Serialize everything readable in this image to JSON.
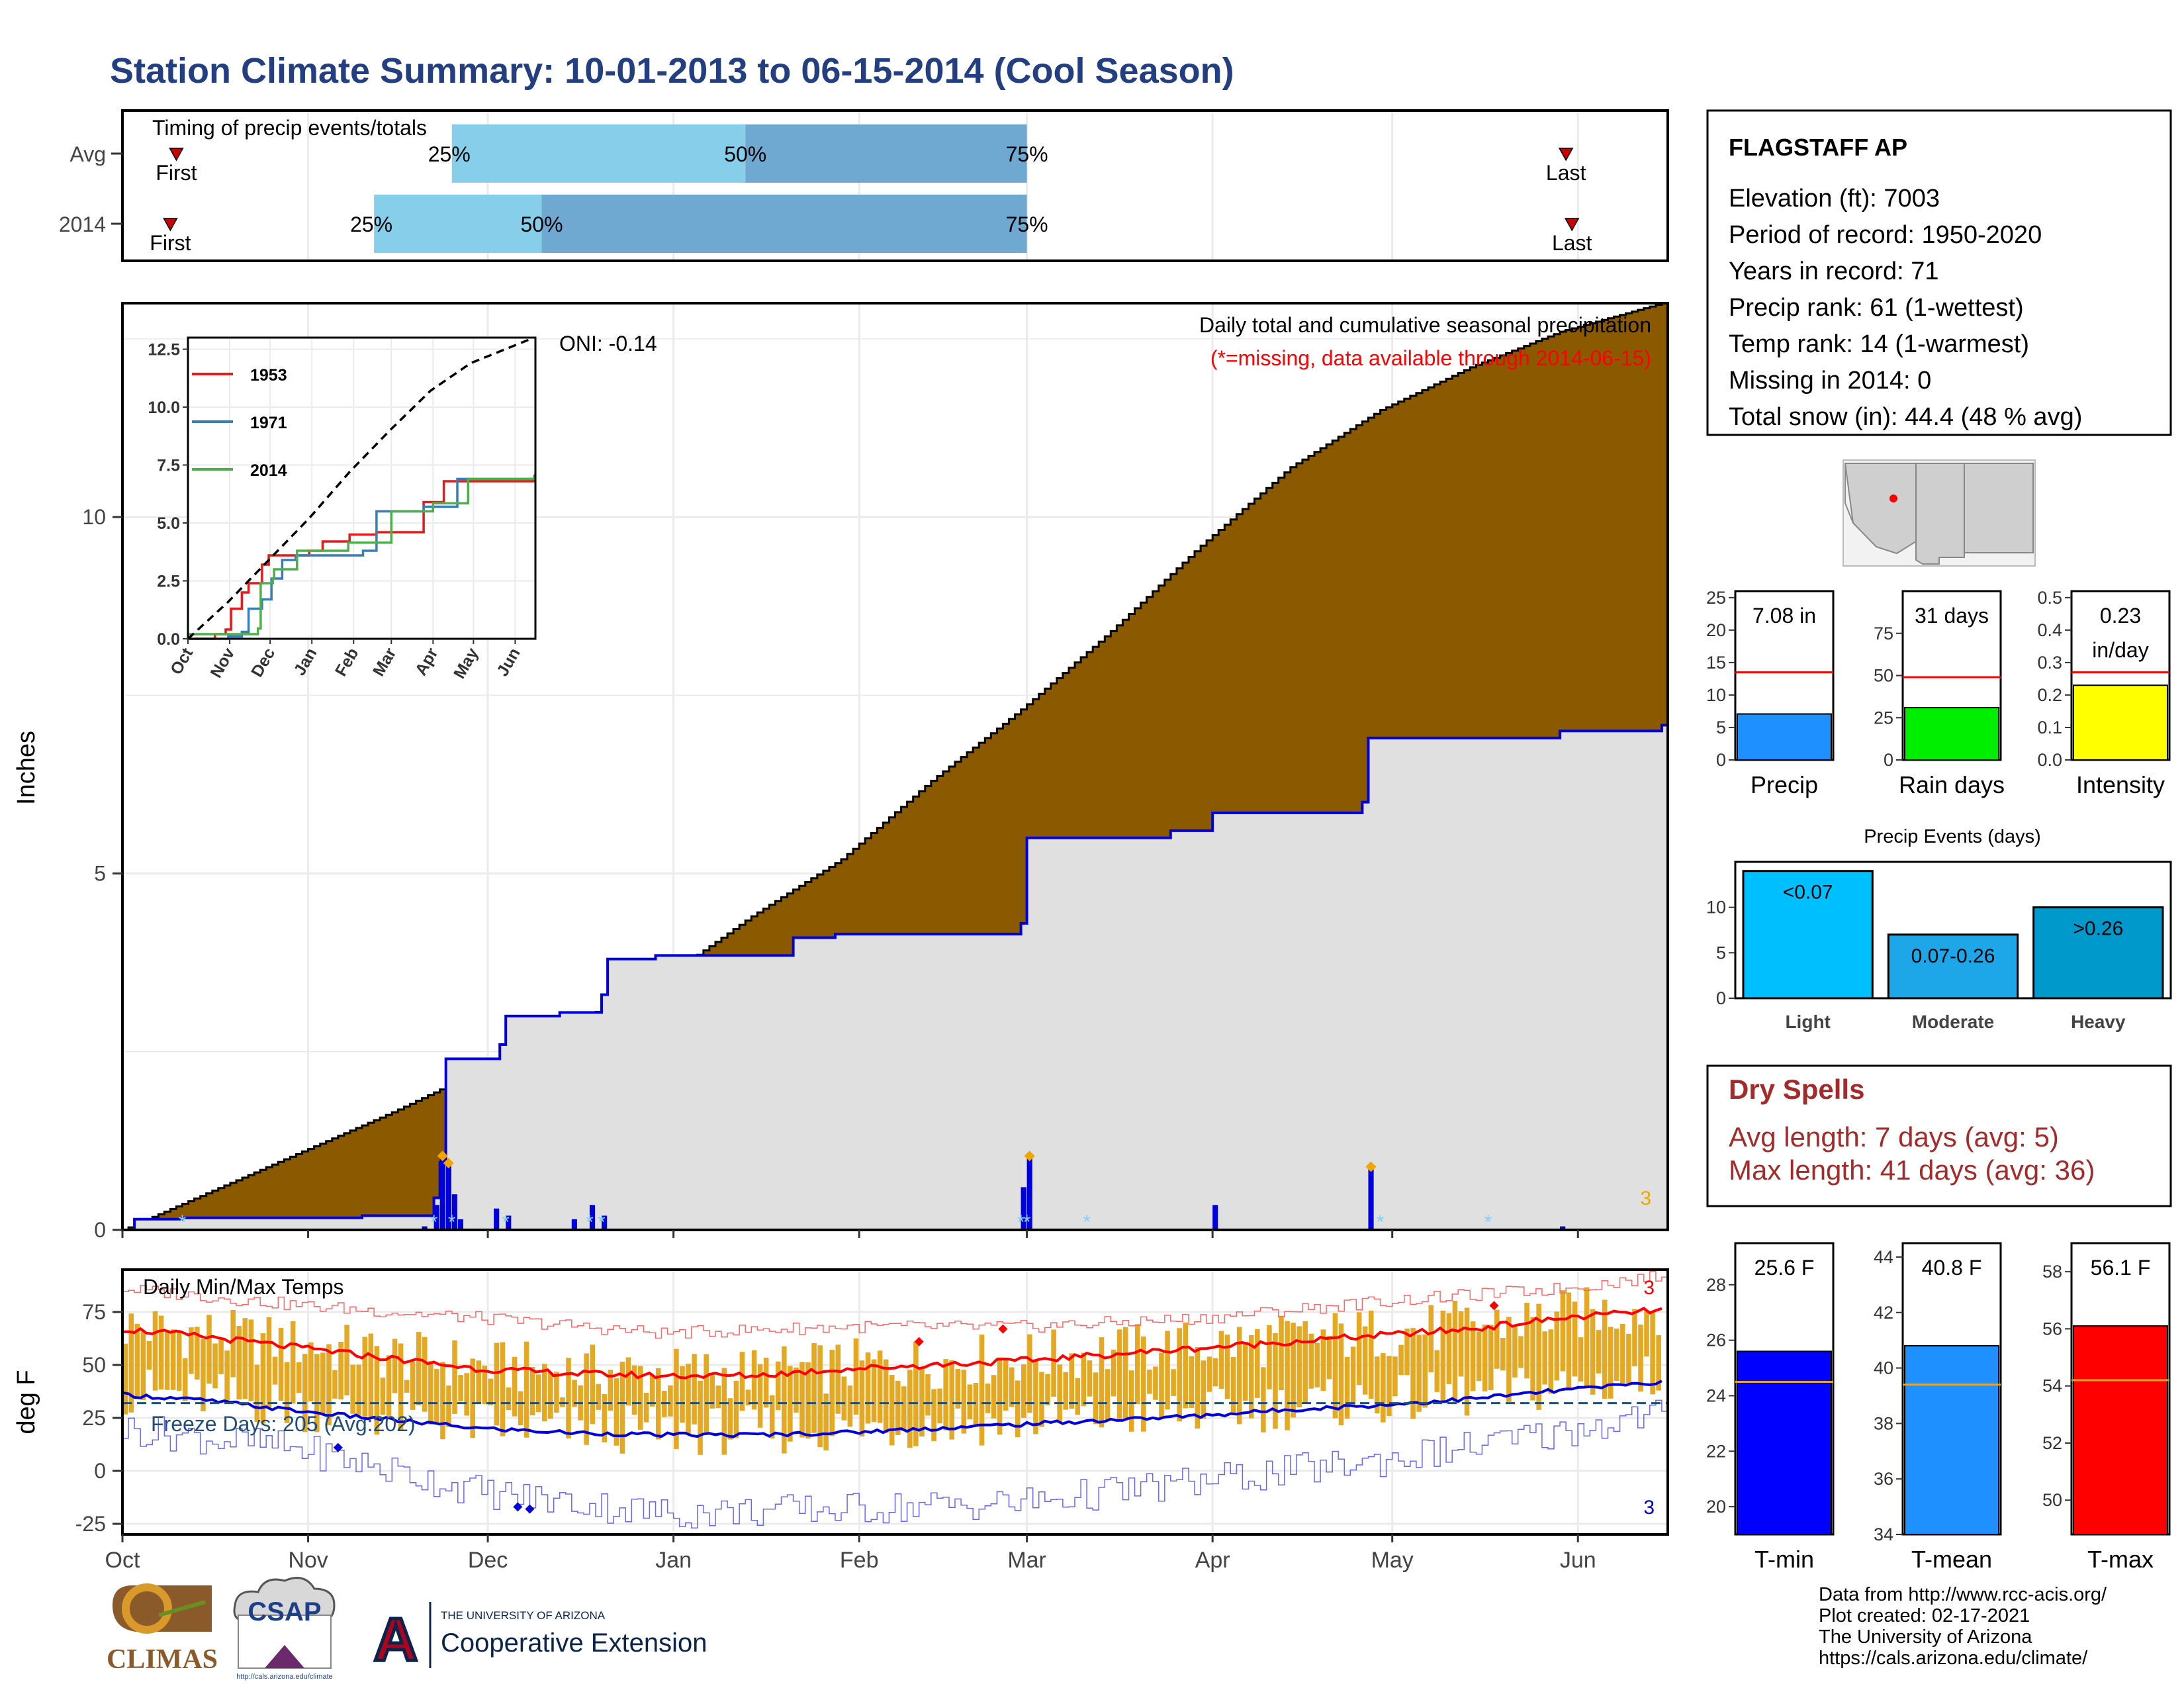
{
  "title": "Station Climate Summary: 10-01-2013 to 06-15-2014 (Cool Season)",
  "colors": {
    "title": "#233f82",
    "brown": "#8b5a00",
    "gray_fill": "#e0e0e0",
    "blue_line": "#0000dd",
    "light_blue": "#87ceeb",
    "steel_blue": "#6fa8d0",
    "orange": "#f0a500",
    "dry_red": "#a52a2a",
    "red": "#ff0000"
  },
  "timing": {
    "title": "Timing of precip events/totals",
    "row_labels": [
      "Avg",
      "2014"
    ],
    "first_label": "First",
    "last_label": "Last",
    "pct_labels": [
      "25%",
      "50%",
      "75%"
    ]
  },
  "chart_data": [
    {
      "id": "timing",
      "type": "bar",
      "title": "Timing of precip events/totals",
      "rows": [
        {
          "label": "Avg",
          "first": "10-10",
          "p25": "11-25",
          "p50": "01-13",
          "p75": "03-01",
          "last": "05-30"
        },
        {
          "label": "2014",
          "first": "10-09",
          "p25": "11-12",
          "p50": "12-10",
          "p75": "02-29",
          "last": "05-31"
        }
      ]
    },
    {
      "id": "precip_main",
      "type": "area",
      "title": "Daily total and cumulative seasonal precipitation",
      "subtitle": "(*=missing, data available through 2014-06-15)",
      "ylabel": "Inches",
      "ylim": [
        0,
        13
      ],
      "y_ticks": [
        0,
        5,
        10
      ],
      "x_ticks": [
        "Oct",
        "Nov",
        "Dec",
        "Jan",
        "Feb",
        "Mar",
        "Apr",
        "May",
        "Jun"
      ],
      "annotation": "ONI: -0.14",
      "count_label": "3",
      "series": [
        {
          "name": "average cumulative",
          "day": [
            0,
            15,
            30,
            45,
            60,
            75,
            90,
            105,
            120,
            135,
            150,
            165,
            180,
            195,
            210,
            225,
            240,
            257
          ],
          "values": [
            0,
            0.55,
            1.1,
            1.65,
            2.25,
            2.9,
            3.5,
            4.4,
            5.2,
            6.3,
            7.3,
            8.4,
            9.6,
            10.7,
            11.5,
            12.1,
            12.6,
            13.0
          ]
        },
        {
          "name": "2014 cumulative",
          "day": [
            0,
            2,
            10,
            40,
            52,
            53,
            54,
            63,
            64,
            73,
            80,
            81,
            89,
            112,
            119,
            150,
            151,
            175,
            182,
            207,
            208,
            240,
            257
          ],
          "values": [
            0,
            0.15,
            0.17,
            0.2,
            0.45,
            0.95,
            2.4,
            2.6,
            3.0,
            3.05,
            3.3,
            3.8,
            3.85,
            4.1,
            4.15,
            4.3,
            5.5,
            5.6,
            5.85,
            6.0,
            6.9,
            7.0,
            7.08
          ]
        },
        {
          "name": "daily precip",
          "day": [
            50,
            52,
            53,
            54,
            55,
            56,
            62,
            64,
            75,
            78,
            80,
            150,
            151,
            182,
            208,
            240
          ],
          "values": [
            0.05,
            0.35,
            1.0,
            0.9,
            0.5,
            0.15,
            0.3,
            0.2,
            0.15,
            0.35,
            0.2,
            0.6,
            1.0,
            0.35,
            0.85,
            0.05
          ]
        }
      ]
    },
    {
      "id": "inset",
      "type": "line",
      "x_ticks": [
        "Oct",
        "Nov",
        "Dec",
        "Jan",
        "Feb",
        "Mar",
        "Apr",
        "May",
        "Jun"
      ],
      "y_ticks": [
        "0.0",
        "2.5",
        "5.0",
        "7.5",
        "10.0",
        "12.5"
      ],
      "ylim": [
        0,
        13
      ],
      "series": [
        {
          "name": "1953",
          "color": "#e41a1c",
          "day": [
            0,
            20,
            28,
            32,
            40,
            45,
            55,
            60,
            90,
            100,
            110,
            120,
            140,
            160,
            175,
            190,
            257
          ],
          "values": [
            0,
            0.2,
            0.4,
            1.3,
            2.0,
            2.4,
            3.2,
            3.6,
            3.8,
            4.2,
            4.2,
            4.5,
            4.6,
            4.6,
            5.9,
            6.8,
            7.0
          ]
        },
        {
          "name": "1971",
          "color": "#377eb8",
          "day": [
            0,
            30,
            40,
            45,
            55,
            62,
            70,
            80,
            110,
            130,
            140,
            175,
            200,
            257
          ],
          "values": [
            0,
            0.1,
            0.3,
            1.3,
            1.7,
            2.6,
            3.4,
            3.6,
            3.6,
            3.8,
            5.5,
            5.7,
            6.9,
            7.0
          ]
        },
        {
          "name": "2014",
          "color": "#4daf4a",
          "day": [
            0,
            40,
            52,
            54,
            63,
            64,
            81,
            119,
            151,
            182,
            208,
            257
          ],
          "values": [
            0.2,
            0.2,
            0.45,
            2.4,
            2.6,
            3.0,
            3.8,
            4.15,
            5.5,
            5.85,
            6.9,
            7.08
          ]
        },
        {
          "name": "record high",
          "color": "#000000",
          "day": [
            0,
            30,
            60,
            90,
            120,
            150,
            180,
            210,
            240,
            257
          ],
          "values": [
            0,
            1.6,
            3.4,
            5.2,
            7.2,
            9.0,
            10.7,
            11.9,
            12.6,
            13.0
          ]
        }
      ]
    },
    {
      "id": "bar_precip",
      "type": "bar",
      "categories": [
        "Precip"
      ],
      "values": [
        7.08
      ],
      "value_label": "7.08 in",
      "avg": 13.5,
      "ylim": [
        0,
        26
      ],
      "y_ticks": [
        0,
        5,
        10,
        15,
        20,
        25
      ]
    },
    {
      "id": "bar_raindays",
      "type": "bar",
      "categories": [
        "Rain days"
      ],
      "values": [
        31
      ],
      "value_label": "31 days",
      "avg": 49,
      "ylim": [
        0,
        100
      ],
      "y_ticks": [
        0,
        25,
        50,
        75
      ]
    },
    {
      "id": "bar_intensity",
      "type": "bar",
      "categories": [
        "Intensity"
      ],
      "values": [
        0.23
      ],
      "value_label": [
        "0.23",
        "in/day"
      ],
      "avg": 0.27,
      "ylim": [
        0,
        0.52
      ],
      "y_ticks": [
        "0.0",
        "0.1",
        "0.2",
        "0.3",
        "0.4",
        "0.5"
      ]
    },
    {
      "id": "precip_events",
      "type": "bar",
      "title": "Precip Events (days)",
      "categories": [
        "Light",
        "Moderate",
        "Heavy"
      ],
      "values": [
        14,
        7,
        10
      ],
      "bar_labels": [
        "<0.07",
        "0.07-0.26",
        ">0.26"
      ],
      "ylim": [
        0,
        15
      ],
      "y_ticks": [
        0,
        5,
        10
      ]
    },
    {
      "id": "temps",
      "type": "line",
      "title": "Daily Min/Max Temps",
      "ylabel": "deg F",
      "ylim": [
        -30,
        95
      ],
      "y_ticks": [
        -25,
        0,
        25,
        50,
        75
      ],
      "x_ticks": [
        "Oct",
        "Nov",
        "Dec",
        "Jan",
        "Feb",
        "Mar",
        "Apr",
        "May",
        "Jun"
      ],
      "annotation": "Freeze Days: 205 (Avg:202)",
      "freeze_line": 32,
      "count_top": "3",
      "count_bottom": "3",
      "series": [
        {
          "name": "avg max",
          "day": [
            0,
            15,
            30,
            45,
            60,
            75,
            90,
            105,
            120,
            135,
            150,
            165,
            180,
            195,
            210,
            225,
            240,
            257
          ],
          "values": [
            67,
            63,
            58,
            53,
            48,
            46,
            45,
            45,
            48,
            50,
            52,
            55,
            58,
            61,
            64,
            67,
            72,
            76
          ]
        },
        {
          "name": "avg min",
          "day": [
            0,
            15,
            30,
            45,
            60,
            75,
            90,
            105,
            120,
            135,
            150,
            165,
            180,
            195,
            210,
            225,
            240,
            257
          ],
          "values": [
            36,
            33,
            28,
            24,
            20,
            18,
            17,
            17,
            18,
            20,
            22,
            24,
            26,
            29,
            31,
            34,
            38,
            42
          ]
        },
        {
          "name": "record max",
          "day": [
            0,
            30,
            60,
            90,
            120,
            150,
            180,
            210,
            240,
            257
          ],
          "values": [
            86,
            78,
            72,
            65,
            68,
            68,
            72,
            80,
            86,
            92
          ]
        },
        {
          "name": "record min",
          "day": [
            0,
            30,
            60,
            90,
            120,
            150,
            180,
            210,
            240,
            257
          ],
          "values": [
            20,
            10,
            -10,
            -20,
            -18,
            -15,
            -5,
            5,
            18,
            28
          ]
        }
      ]
    },
    {
      "id": "bar_tmin",
      "type": "bar",
      "categories": [
        "T-min"
      ],
      "values": [
        25.6
      ],
      "value_label": "25.6 F",
      "avg": 24.5,
      "ylim": [
        19,
        29.5
      ],
      "y_ticks": [
        20,
        22,
        24,
        26,
        28
      ]
    },
    {
      "id": "bar_tmean",
      "type": "bar",
      "categories": [
        "T-mean"
      ],
      "values": [
        40.8
      ],
      "value_label": "40.8 F",
      "avg": 39.4,
      "ylim": [
        34,
        44.5
      ],
      "y_ticks": [
        34,
        36,
        38,
        40,
        42,
        44
      ]
    },
    {
      "id": "bar_tmax",
      "type": "bar",
      "categories": [
        "T-max"
      ],
      "values": [
        56.1
      ],
      "value_label": "56.1 F",
      "avg": 54.2,
      "ylim": [
        48.8,
        59
      ],
      "y_ticks": [
        50,
        52,
        54,
        56,
        58
      ]
    }
  ],
  "station": {
    "name": "FLAGSTAFF AP",
    "lines": [
      "Elevation (ft): 7003",
      "Period of record: 1950-2020",
      "Years in record: 71",
      "Precip rank: 61 (1-wettest)",
      "Temp rank: 14 (1-warmest)",
      "Missing in 2014: 0",
      "Total snow (in): 44.4 (48 % avg)"
    ]
  },
  "dry_spells": {
    "title": "Dry Spells",
    "avg_length": "Avg length: 7 days (avg: 5)",
    "max_length": "Max length: 41 days (avg: 36)"
  },
  "footer": {
    "credits": [
      "Data from http://www.rcc-acis.org/",
      "Plot created: 02-17-2021",
      "The University of Arizona",
      "https://cals.arizona.edu/climate/"
    ],
    "climas": "CLIMAS",
    "csap": "CSAP",
    "csap_url": "http://cals.arizona.edu/climate",
    "ua_small": "THE UNIVERSITY OF ARIZONA",
    "ua_big": "Cooperative Extension",
    "ua_letter": "A"
  }
}
